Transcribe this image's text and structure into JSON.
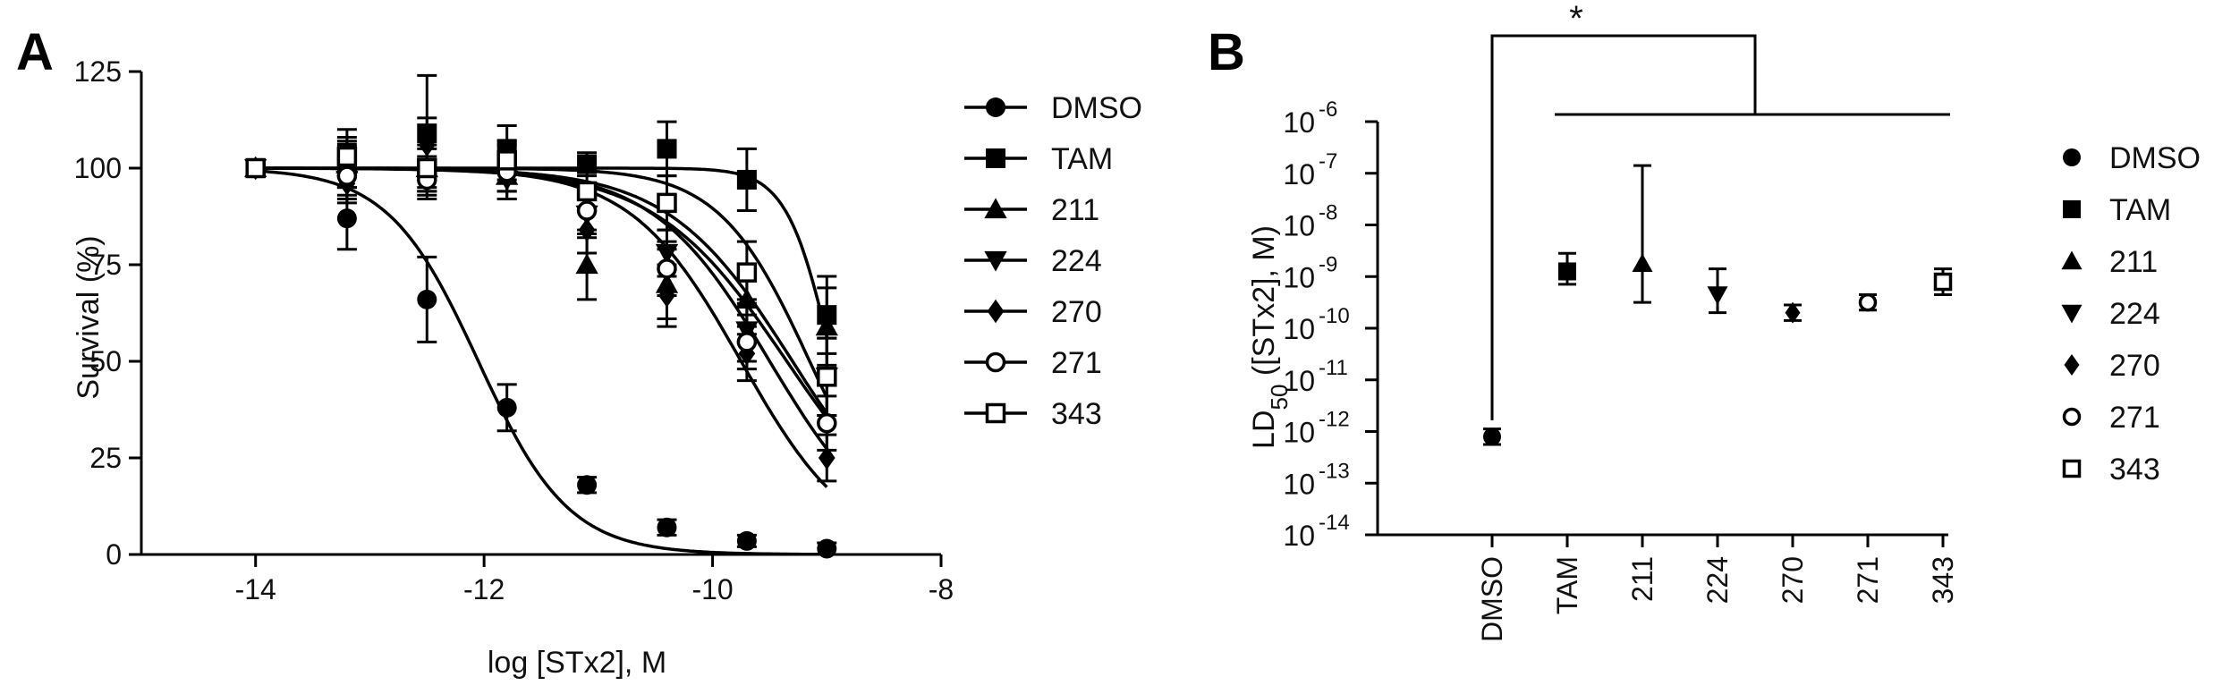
{
  "chart_data": [
    {
      "panel": "A",
      "type": "line",
      "xlabel": "log [STx2], M",
      "ylabel": "Survival (%)",
      "xlim": [
        -15,
        -8
      ],
      "ylim": [
        0,
        125
      ],
      "xticks": [
        -14,
        -12,
        -10,
        -8
      ],
      "yticks": [
        0,
        25,
        50,
        75,
        100,
        125
      ],
      "legend_position": "right",
      "series": [
        {
          "name": "DMSO",
          "marker": "circle-filled",
          "x": [
            -14,
            -13.2,
            -12.5,
            -11.8,
            -11.1,
            -10.4,
            -9.7,
            -9.0
          ],
          "y": [
            100,
            87,
            66,
            38,
            18,
            7,
            3.5,
            1.5
          ],
          "err": [
            0,
            8,
            11,
            6,
            2,
            2,
            1.5,
            1.5
          ],
          "fit": {
            "top": 100,
            "bottom": 0,
            "logEC50": -12.05,
            "hill": 1.1
          }
        },
        {
          "name": "TAM",
          "marker": "square-filled",
          "x": [
            -14,
            -13.2,
            -12.5,
            -11.8,
            -11.1,
            -10.4,
            -9.7,
            -9.0
          ],
          "y": [
            100,
            104,
            109,
            105,
            101,
            105,
            97,
            62
          ],
          "err": [
            0,
            6,
            15,
            6,
            3,
            7,
            8,
            10
          ],
          "fit": {
            "top": 100,
            "bottom": 0,
            "logEC50": -8.95,
            "hill": 2.2
          }
        },
        {
          "name": "211",
          "marker": "triangle-up-filled",
          "x": [
            -14,
            -13.2,
            -12.5,
            -11.8,
            -11.1,
            -10.4,
            -9.7,
            -9.0
          ],
          "y": [
            100,
            101,
            100,
            98,
            75,
            70,
            66,
            59
          ],
          "err": [
            0,
            6,
            6,
            6,
            9,
            9,
            9,
            10
          ],
          "fit": {
            "top": 100,
            "bottom": 0,
            "logEC50": -9.3,
            "hill": 0.8
          }
        },
        {
          "name": "224",
          "marker": "triangle-down-filled",
          "x": [
            -14,
            -13.2,
            -12.5,
            -11.8,
            -11.1,
            -10.4,
            -9.7,
            -9.0
          ],
          "y": [
            100,
            97,
            98,
            97,
            88,
            78,
            58,
            46
          ],
          "err": [
            0,
            5,
            5,
            5,
            6,
            6,
            8,
            10
          ],
          "fit": {
            "top": 100,
            "bottom": 0,
            "logEC50": -9.35,
            "hill": 0.75
          }
        },
        {
          "name": "270",
          "marker": "diamond-filled",
          "x": [
            -14,
            -13.2,
            -12.5,
            -11.8,
            -11.1,
            -10.4,
            -9.7,
            -9.0
          ],
          "y": [
            100,
            96,
            106,
            100,
            84,
            67,
            52,
            25
          ],
          "err": [
            0,
            5,
            7,
            6,
            6,
            8,
            7,
            6
          ],
          "fit": {
            "top": 100,
            "bottom": 0,
            "logEC50": -9.75,
            "hill": 0.9
          }
        },
        {
          "name": "271",
          "marker": "circle-open",
          "x": [
            -14,
            -13.2,
            -12.5,
            -11.8,
            -11.1,
            -10.4,
            -9.7,
            -9.0
          ],
          "y": [
            100,
            98,
            97,
            99,
            89,
            74,
            55,
            34
          ],
          "err": [
            0,
            5,
            5,
            5,
            6,
            7,
            7,
            7
          ],
          "fit": {
            "top": 100,
            "bottom": 0,
            "logEC50": -9.5,
            "hill": 0.85
          }
        },
        {
          "name": "343",
          "marker": "square-open",
          "x": [
            -14,
            -13.2,
            -12.5,
            -11.8,
            -11.1,
            -10.4,
            -9.7,
            -9.0
          ],
          "y": [
            100,
            103,
            100,
            102,
            94,
            91,
            73,
            46
          ],
          "err": [
            0,
            5,
            5,
            5,
            5,
            7,
            8,
            10
          ],
          "fit": {
            "top": 100,
            "bottom": 0,
            "logEC50": -9.15,
            "hill": 1.1
          }
        }
      ]
    },
    {
      "panel": "B",
      "type": "scatter",
      "ylabel_main": "LD",
      "ylabel_sub": "50",
      "ylabel_rest": " ([STx2], M)",
      "yscale": "log",
      "ylim_exp": [
        -14,
        -6
      ],
      "ytick_base": "10",
      "ytick_exponents": [
        "-6",
        "-7",
        "-8",
        "-9",
        "-10",
        "-11",
        "-12",
        "-13",
        "-14"
      ],
      "categories": [
        "DMSO",
        "TAM",
        "211",
        "224",
        "270",
        "271",
        "343"
      ],
      "legend_position": "right",
      "significance_label": "*",
      "points": [
        {
          "name": "DMSO",
          "marker": "circle-filled",
          "log10_value": -12.1,
          "err_up": 0.15,
          "err_down": 0.15
        },
        {
          "name": "TAM",
          "marker": "square-filled",
          "log10_value": -8.9,
          "err_up": 0.35,
          "err_down": 0.25
        },
        {
          "name": "211",
          "marker": "triangle-up-filled",
          "log10_value": -8.75,
          "err_up": 1.9,
          "err_down": 0.75
        },
        {
          "name": "224",
          "marker": "triangle-down-filled",
          "log10_value": -9.35,
          "err_up": 0.5,
          "err_down": 0.35
        },
        {
          "name": "270",
          "marker": "diamond-filled",
          "log10_value": -9.7,
          "err_up": 0.15,
          "err_down": 0.15
        },
        {
          "name": "271",
          "marker": "circle-open",
          "log10_value": -9.5,
          "err_up": 0.15,
          "err_down": 0.15
        },
        {
          "name": "343",
          "marker": "square-open",
          "log10_value": -9.1,
          "err_up": 0.25,
          "err_down": 0.25
        }
      ]
    }
  ],
  "panels": {
    "a_letter": "A",
    "b_letter": "B"
  }
}
